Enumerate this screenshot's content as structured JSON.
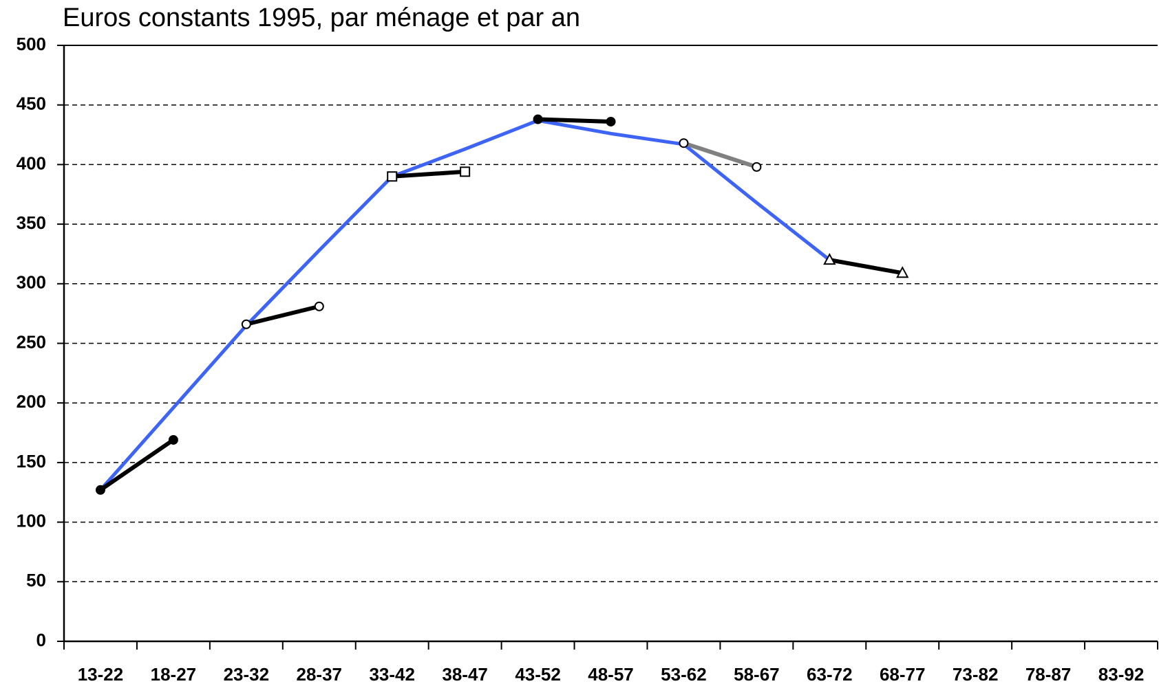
{
  "chart_data": {
    "type": "line",
    "title": "Euros constants 1995, par ménage et par an",
    "categories": [
      "13-22",
      "18-27",
      "23-32",
      "28-37",
      "33-42",
      "38-47",
      "43-52",
      "48-57",
      "53-62",
      "58-67",
      "63-72",
      "68-77",
      "73-82",
      "78-87",
      "83-92"
    ],
    "ylim": [
      0,
      500
    ],
    "yticks": [
      0,
      50,
      100,
      150,
      200,
      250,
      300,
      350,
      400,
      450,
      500
    ],
    "grid": true,
    "series": [
      {
        "color": "#3d64f5",
        "marker": "none",
        "values": [
          127,
          196,
          265,
          328,
          390,
          413,
          437,
          426,
          417,
          368,
          320,
          null,
          null,
          null,
          null
        ]
      },
      {
        "color": "#000000",
        "marker": "filled-circle",
        "values": [
          127,
          169,
          null,
          null,
          null,
          null,
          null,
          null,
          null,
          null,
          null,
          null,
          null,
          null,
          null
        ]
      },
      {
        "color": "#000000",
        "marker": "open-circle",
        "values": [
          null,
          null,
          266,
          281,
          null,
          null,
          null,
          null,
          null,
          null,
          null,
          null,
          null,
          null,
          null
        ]
      },
      {
        "color": "#000000",
        "marker": "open-square",
        "values": [
          null,
          null,
          null,
          null,
          390,
          394,
          null,
          null,
          null,
          null,
          null,
          null,
          null,
          null,
          null
        ]
      },
      {
        "color": "#000000",
        "marker": "filled-circle",
        "values": [
          null,
          null,
          null,
          null,
          null,
          null,
          438,
          436,
          null,
          null,
          null,
          null,
          null,
          null,
          null
        ]
      },
      {
        "color": "#808080",
        "marker": "open-circle",
        "values": [
          null,
          null,
          null,
          null,
          null,
          null,
          null,
          null,
          418,
          398,
          null,
          null,
          null,
          null,
          null
        ]
      },
      {
        "color": "#000000",
        "marker": "open-triangle",
        "values": [
          null,
          null,
          null,
          null,
          null,
          null,
          null,
          null,
          null,
          null,
          320,
          309,
          null,
          null,
          null
        ]
      }
    ]
  }
}
